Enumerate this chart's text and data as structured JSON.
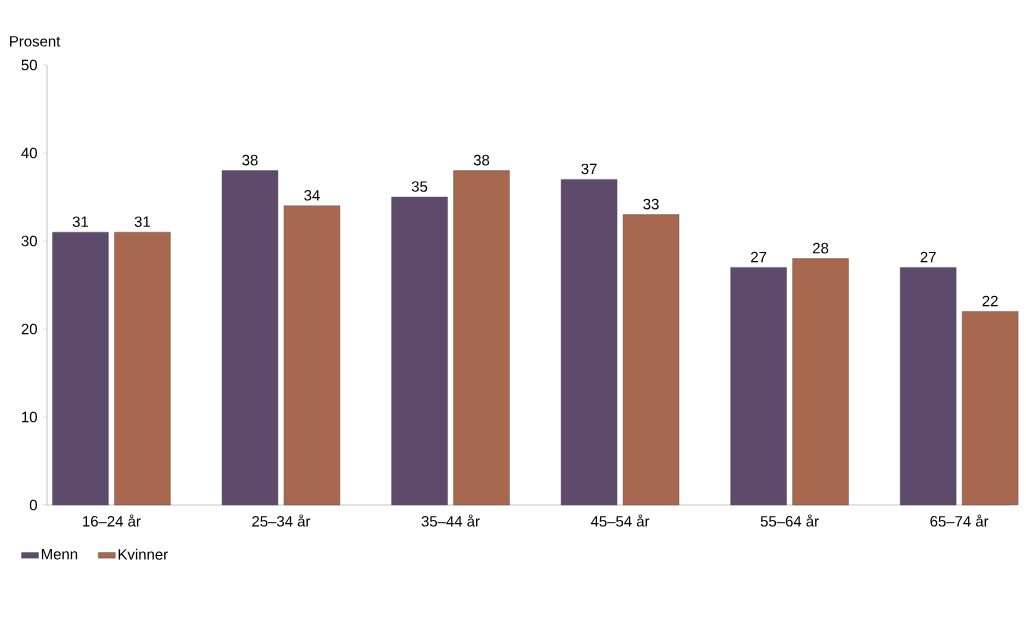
{
  "chart_data": {
    "type": "bar",
    "ylabel": "Prosent",
    "categories": [
      "16–24 år",
      "25–34 år",
      "35–44 år",
      "45–54 år",
      "55–64 år",
      "65–74 år"
    ],
    "series": [
      {
        "name": "Menn",
        "color": "#5e4a6b",
        "values": [
          31,
          38,
          35,
          37,
          27,
          27
        ]
      },
      {
        "name": "Kvinner",
        "color": "#a8674f",
        "values": [
          31,
          34,
          38,
          33,
          28,
          22
        ]
      }
    ],
    "ylim": [
      0,
      50
    ],
    "yticks": [
      0,
      10,
      20,
      30,
      40,
      50
    ],
    "data_labels": true,
    "legend": "bottom left",
    "grid": false
  }
}
